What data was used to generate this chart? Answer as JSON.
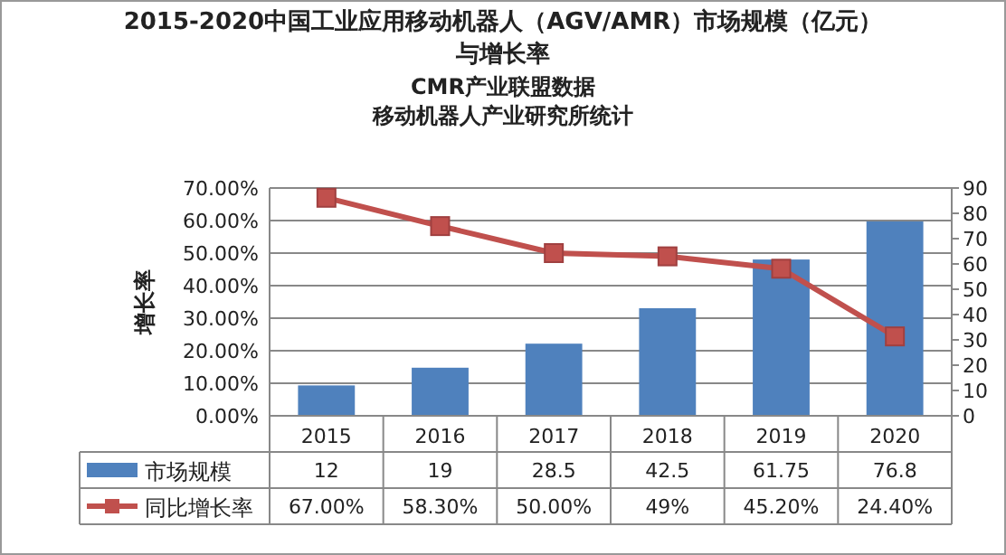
{
  "chart_data": {
    "type": "bar",
    "title": "2015-2020中国工业应用移动机器人（AGV/AMR）市场规模（亿元）与增长率",
    "subtitle": "CMR产业联盟数据",
    "annotations": [
      "移动机器人产业研究所统计"
    ],
    "ylabel": "增长率",
    "categories": [
      "2015",
      "2016",
      "2017",
      "2018",
      "2019",
      "2020"
    ],
    "series": [
      {
        "name": "市场规模",
        "axis": "y2",
        "color": "#4f81bd",
        "values": [
          12,
          19,
          28.5,
          42.5,
          61.75,
          76.8
        ],
        "value_labels": [
          "12",
          "19",
          "28.5",
          "42.5",
          "61.75",
          "76.8"
        ]
      },
      {
        "name": "同比增长率",
        "type": "line",
        "color": "#c0504d",
        "marker": "square",
        "values": [
          67,
          58.3,
          50,
          49,
          45.2,
          24.4
        ],
        "value_labels": [
          "67.00%",
          "58.30%",
          "50.00%",
          "49%",
          "45.20%",
          "24.40%"
        ]
      }
    ],
    "ylim": [
      0,
      70
    ],
    "yticks": [
      {
        "value": 0,
        "label": "0.00%"
      },
      {
        "value": 10,
        "label": "10.00%"
      },
      {
        "value": 20,
        "label": "20.00%"
      },
      {
        "value": 30,
        "label": "30.00%"
      },
      {
        "value": 40,
        "label": "40.00%"
      },
      {
        "value": 50,
        "label": "50.00%"
      },
      {
        "value": 60,
        "label": "60.00%"
      },
      {
        "value": 70,
        "label": "70.00%"
      }
    ],
    "y2lim": [
      0,
      90
    ],
    "y2ticks": [
      0,
      10,
      20,
      30,
      40,
      50,
      60,
      70,
      80,
      90
    ],
    "grid": "y",
    "legend": "bottom"
  }
}
